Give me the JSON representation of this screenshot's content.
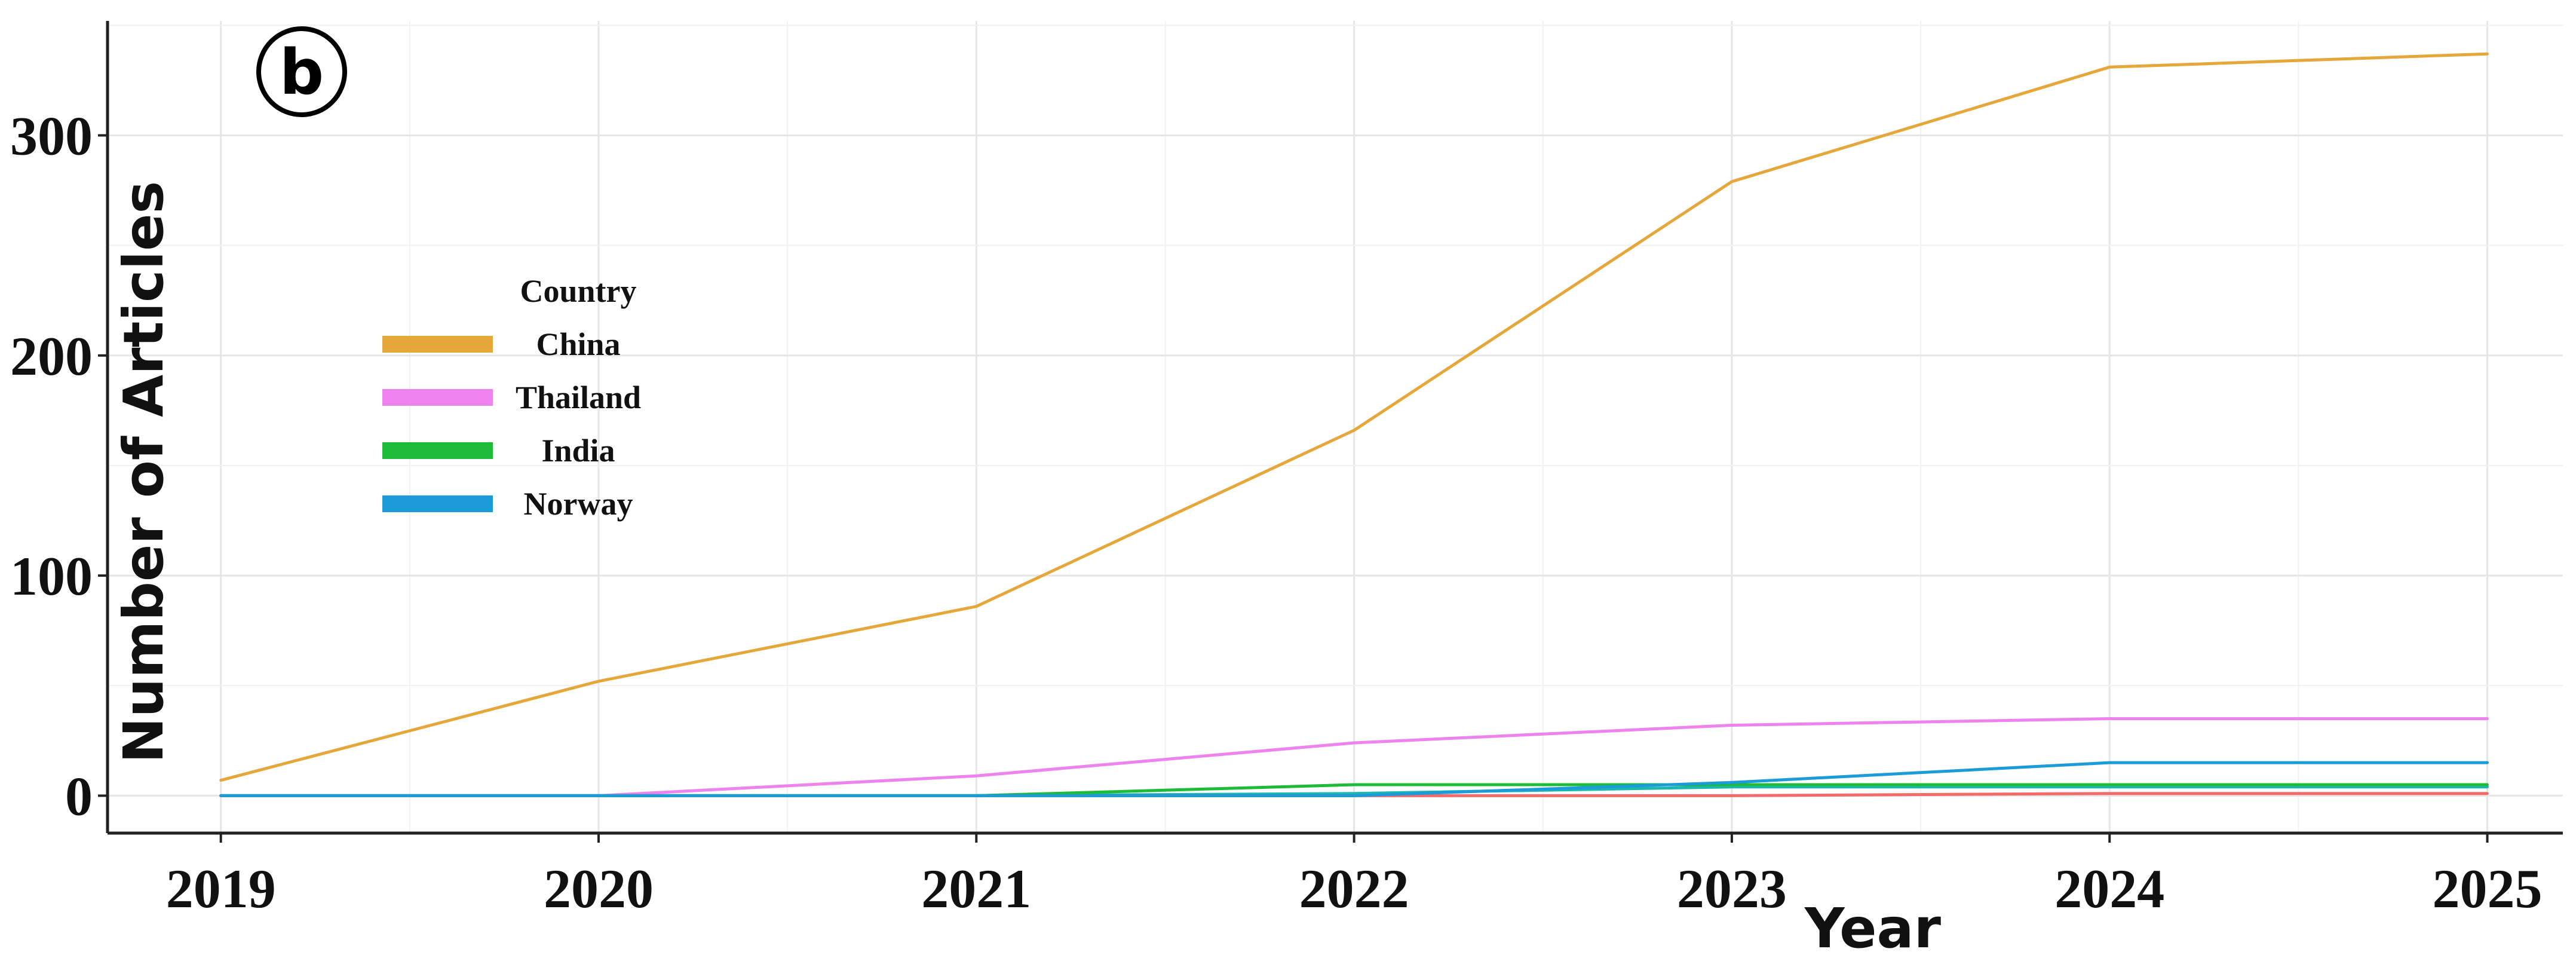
{
  "panel_label": "b",
  "legend": {
    "title": "Country",
    "items": [
      {
        "label": "China",
        "color": "#E5A63A"
      },
      {
        "label": "Thailand",
        "color": "#EE82EE"
      },
      {
        "label": "India",
        "color": "#1DBB37"
      },
      {
        "label": "Norway",
        "color": "#1B9BD7"
      }
    ]
  },
  "chart_data": {
    "type": "line",
    "title": "",
    "xlabel": "Year",
    "ylabel": "Number of Articles",
    "x": [
      2019,
      2020,
      2021,
      2022,
      2023,
      2024,
      2025
    ],
    "xlim": [
      2018.7,
      2025.2
    ],
    "ylim": [
      -17,
      352
    ],
    "yticks": [
      0,
      100,
      200,
      300
    ],
    "grid": true,
    "legend_position": "left",
    "series": [
      {
        "name": "China",
        "color": "#E5A63A",
        "values": [
          7,
          52,
          86,
          166,
          279,
          331,
          337
        ]
      },
      {
        "name": "Thailand",
        "color": "#EE82EE",
        "values": [
          0,
          0,
          9,
          24,
          32,
          35,
          35
        ]
      },
      {
        "name": "India",
        "color": "#1DBB37",
        "values": [
          0,
          0,
          0,
          5,
          5,
          5,
          5
        ]
      },
      {
        "name": "Norway",
        "color": "#1B9BD7",
        "values": [
          0,
          0,
          0,
          0,
          6,
          15,
          15
        ]
      },
      {
        "color": "#1BB8B0",
        "values": [
          0,
          0,
          0,
          1,
          4,
          4,
          4
        ]
      },
      {
        "color": "#F26B6B",
        "values": [
          0,
          0,
          0,
          0,
          0,
          1,
          1
        ]
      }
    ]
  }
}
